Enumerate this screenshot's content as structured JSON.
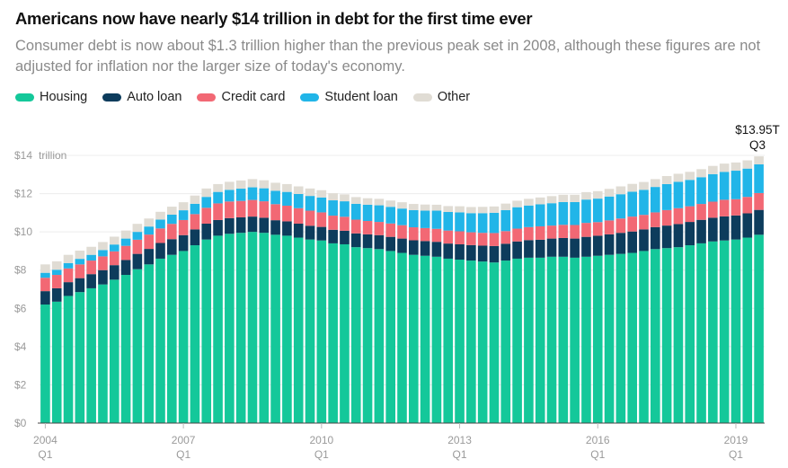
{
  "chart_data": {
    "type": "bar",
    "stacked": true,
    "title": "Americans now have nearly $14 trillion in debt for the first time ever",
    "subtitle": "Consumer debt is now about $1.3 trillion higher than the previous peak set in 2008, although these figures are not adjusted for inflation nor the larger size of today's economy.",
    "ylim": [
      0,
      14
    ],
    "y_unit_label": "trillion",
    "y_ticks": [
      {
        "value": 0,
        "label": "$0"
      },
      {
        "value": 2,
        "label": "$2"
      },
      {
        "value": 4,
        "label": "$4"
      },
      {
        "value": 6,
        "label": "$6"
      },
      {
        "value": 8,
        "label": "$8"
      },
      {
        "value": 10,
        "label": "$10"
      },
      {
        "value": 12,
        "label": "$12"
      },
      {
        "value": 14,
        "label": "$14"
      }
    ],
    "x_ticks": [
      {
        "index": 0,
        "year": "2004",
        "quarter": "Q1"
      },
      {
        "index": 12,
        "year": "2007",
        "quarter": "Q1"
      },
      {
        "index": 24,
        "year": "2010",
        "quarter": "Q1"
      },
      {
        "index": 36,
        "year": "2013",
        "quarter": "Q1"
      },
      {
        "index": 48,
        "year": "2016",
        "quarter": "Q1"
      },
      {
        "index": 60,
        "year": "2019",
        "quarter": "Q1"
      }
    ],
    "categories": [
      "2004 Q1",
      "2004 Q2",
      "2004 Q3",
      "2004 Q4",
      "2005 Q1",
      "2005 Q2",
      "2005 Q3",
      "2005 Q4",
      "2006 Q1",
      "2006 Q2",
      "2006 Q3",
      "2006 Q4",
      "2007 Q1",
      "2007 Q2",
      "2007 Q3",
      "2007 Q4",
      "2008 Q1",
      "2008 Q2",
      "2008 Q3",
      "2008 Q4",
      "2009 Q1",
      "2009 Q2",
      "2009 Q3",
      "2009 Q4",
      "2010 Q1",
      "2010 Q2",
      "2010 Q3",
      "2010 Q4",
      "2011 Q1",
      "2011 Q2",
      "2011 Q3",
      "2011 Q4",
      "2012 Q1",
      "2012 Q2",
      "2012 Q3",
      "2012 Q4",
      "2013 Q1",
      "2013 Q2",
      "2013 Q3",
      "2013 Q4",
      "2014 Q1",
      "2014 Q2",
      "2014 Q3",
      "2014 Q4",
      "2015 Q1",
      "2015 Q2",
      "2015 Q3",
      "2015 Q4",
      "2016 Q1",
      "2016 Q2",
      "2016 Q3",
      "2016 Q4",
      "2017 Q1",
      "2017 Q2",
      "2017 Q3",
      "2017 Q4",
      "2018 Q1",
      "2018 Q2",
      "2018 Q3",
      "2018 Q4",
      "2019 Q1",
      "2019 Q2",
      "2019 Q3"
    ],
    "series": [
      {
        "name": "Housing",
        "color": "#14c89a",
        "values": [
          6.2,
          6.35,
          6.65,
          6.85,
          7.05,
          7.25,
          7.5,
          7.75,
          8.05,
          8.3,
          8.6,
          8.8,
          9.0,
          9.3,
          9.6,
          9.8,
          9.9,
          9.95,
          10.0,
          9.95,
          9.85,
          9.8,
          9.7,
          9.6,
          9.55,
          9.4,
          9.35,
          9.2,
          9.15,
          9.1,
          9.0,
          8.9,
          8.8,
          8.75,
          8.7,
          8.6,
          8.55,
          8.5,
          8.45,
          8.4,
          8.5,
          8.6,
          8.65,
          8.65,
          8.7,
          8.7,
          8.65,
          8.7,
          8.75,
          8.8,
          8.85,
          8.9,
          9.0,
          9.1,
          9.15,
          9.2,
          9.3,
          9.4,
          9.5,
          9.55,
          9.6,
          9.7,
          9.85
        ]
      },
      {
        "name": "Auto loan",
        "color": "#0d3c5c",
        "values": [
          0.7,
          0.7,
          0.72,
          0.73,
          0.74,
          0.75,
          0.76,
          0.78,
          0.8,
          0.81,
          0.82,
          0.82,
          0.83,
          0.83,
          0.83,
          0.82,
          0.82,
          0.81,
          0.8,
          0.79,
          0.76,
          0.75,
          0.73,
          0.72,
          0.71,
          0.71,
          0.71,
          0.72,
          0.72,
          0.73,
          0.74,
          0.75,
          0.76,
          0.77,
          0.78,
          0.79,
          0.8,
          0.81,
          0.83,
          0.86,
          0.88,
          0.9,
          0.92,
          0.94,
          0.95,
          0.98,
          1.0,
          1.04,
          1.05,
          1.07,
          1.1,
          1.12,
          1.13,
          1.15,
          1.18,
          1.21,
          1.22,
          1.23,
          1.24,
          1.26,
          1.26,
          1.27,
          1.3
        ]
      },
      {
        "name": "Credit card",
        "color": "#f26874",
        "values": [
          0.7,
          0.7,
          0.72,
          0.72,
          0.71,
          0.72,
          0.72,
          0.74,
          0.74,
          0.75,
          0.76,
          0.8,
          0.79,
          0.8,
          0.83,
          0.87,
          0.87,
          0.86,
          0.87,
          0.86,
          0.84,
          0.82,
          0.81,
          0.79,
          0.76,
          0.74,
          0.73,
          0.72,
          0.7,
          0.69,
          0.7,
          0.7,
          0.68,
          0.68,
          0.68,
          0.68,
          0.68,
          0.67,
          0.67,
          0.68,
          0.66,
          0.67,
          0.68,
          0.7,
          0.68,
          0.69,
          0.71,
          0.73,
          0.71,
          0.73,
          0.75,
          0.78,
          0.76,
          0.77,
          0.81,
          0.83,
          0.82,
          0.83,
          0.84,
          0.87,
          0.85,
          0.86,
          0.88
        ]
      },
      {
        "name": "Student loan",
        "color": "#21b5e8",
        "values": [
          0.26,
          0.27,
          0.28,
          0.29,
          0.3,
          0.33,
          0.36,
          0.38,
          0.41,
          0.42,
          0.46,
          0.48,
          0.51,
          0.54,
          0.57,
          0.6,
          0.61,
          0.64,
          0.66,
          0.68,
          0.7,
          0.72,
          0.74,
          0.77,
          0.78,
          0.8,
          0.81,
          0.83,
          0.85,
          0.87,
          0.87,
          0.87,
          0.9,
          0.91,
          0.95,
          0.97,
          0.99,
          1.0,
          1.03,
          1.06,
          1.1,
          1.12,
          1.13,
          1.15,
          1.17,
          1.19,
          1.2,
          1.22,
          1.23,
          1.25,
          1.27,
          1.3,
          1.31,
          1.33,
          1.36,
          1.38,
          1.38,
          1.4,
          1.44,
          1.46,
          1.49,
          1.48,
          1.5
        ]
      },
      {
        "name": "Other",
        "color": "#e0dcd4",
        "values": [
          0.44,
          0.44,
          0.43,
          0.43,
          0.42,
          0.42,
          0.41,
          0.42,
          0.42,
          0.42,
          0.41,
          0.42,
          0.42,
          0.43,
          0.44,
          0.41,
          0.42,
          0.43,
          0.43,
          0.42,
          0.42,
          0.41,
          0.4,
          0.39,
          0.38,
          0.37,
          0.36,
          0.35,
          0.34,
          0.34,
          0.33,
          0.33,
          0.32,
          0.32,
          0.31,
          0.31,
          0.32,
          0.32,
          0.33,
          0.33,
          0.34,
          0.34,
          0.35,
          0.36,
          0.37,
          0.38,
          0.38,
          0.39,
          0.39,
          0.4,
          0.41,
          0.41,
          0.41,
          0.41,
          0.42,
          0.42,
          0.42,
          0.42,
          0.43,
          0.43,
          0.43,
          0.43,
          0.42
        ]
      }
    ],
    "annotation": {
      "value": "$13.95T",
      "period": "Q3"
    }
  }
}
